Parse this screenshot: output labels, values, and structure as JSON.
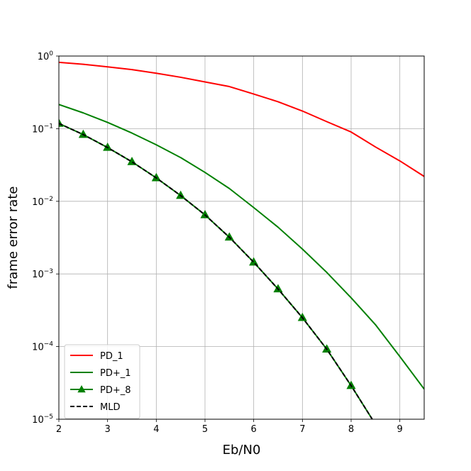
{
  "chart_data": {
    "type": "line",
    "title": "",
    "xlabel": "Eb/N0",
    "ylabel": "frame error rate",
    "xlim": [
      2,
      9.5
    ],
    "ylim": [
      1e-05,
      1
    ],
    "yscale": "log",
    "grid": true,
    "legend_position": "lower-left",
    "x_ticks": [
      2,
      3,
      4,
      5,
      6,
      7,
      8,
      9
    ],
    "x_tick_labels": [
      "2",
      "3",
      "4",
      "5",
      "6",
      "7",
      "8",
      "9"
    ],
    "y_ticks": [
      1e-05,
      0.0001,
      0.001,
      0.01,
      0.1,
      1
    ],
    "y_tick_labels": [
      {
        "base": "10",
        "exp": "−5"
      },
      {
        "base": "10",
        "exp": "−4"
      },
      {
        "base": "10",
        "exp": "−3"
      },
      {
        "base": "10",
        "exp": "−2"
      },
      {
        "base": "10",
        "exp": "−1"
      },
      {
        "base": "10",
        "exp": "0"
      }
    ],
    "series": [
      {
        "name": "PD_1",
        "color": "#ff0000",
        "dash": "solid",
        "marker": "none",
        "x": [
          2,
          2.5,
          3,
          3.5,
          4,
          4.5,
          5,
          5.5,
          6,
          6.5,
          7,
          7.5,
          8,
          8.5,
          9,
          9.5
        ],
        "y": [
          0.82,
          0.77,
          0.71,
          0.65,
          0.58,
          0.51,
          0.44,
          0.38,
          0.3,
          0.235,
          0.175,
          0.125,
          0.09,
          0.056,
          0.036,
          0.022
        ]
      },
      {
        "name": "PD+_1",
        "color": "#008000",
        "dash": "solid",
        "marker": "none",
        "x": [
          2,
          2.5,
          3,
          3.5,
          4,
          4.5,
          5,
          5.5,
          6,
          6.5,
          7,
          7.5,
          8,
          8.5,
          9,
          9.5
        ],
        "y": [
          0.215,
          0.165,
          0.122,
          0.087,
          0.06,
          0.04,
          0.025,
          0.015,
          0.0082,
          0.0044,
          0.0022,
          0.00105,
          0.00047,
          0.0002,
          7.3e-05,
          2.6e-05
        ]
      },
      {
        "name": "PD+_8",
        "color": "#008000",
        "dash": "solid",
        "marker": "triangle",
        "x": [
          2,
          2.5,
          3,
          3.5,
          4,
          4.5,
          5,
          5.5,
          6,
          6.5,
          7,
          7.5,
          8,
          8.5
        ],
        "y": [
          0.118,
          0.083,
          0.055,
          0.035,
          0.021,
          0.012,
          0.0065,
          0.0032,
          0.00145,
          0.00062,
          0.00025,
          9.2e-05,
          2.9e-05,
          8.5e-06
        ]
      },
      {
        "name": "MLD",
        "color": "#000000",
        "dash": "dashed",
        "marker": "none",
        "x": [
          2,
          2.5,
          3,
          3.5,
          4,
          4.5,
          5,
          5.5,
          6,
          6.5,
          7,
          7.5,
          8,
          8.5
        ],
        "y": [
          0.118,
          0.083,
          0.055,
          0.035,
          0.021,
          0.012,
          0.0065,
          0.0032,
          0.00145,
          0.00062,
          0.00025,
          9.2e-05,
          2.9e-05,
          8.5e-06
        ]
      }
    ]
  }
}
